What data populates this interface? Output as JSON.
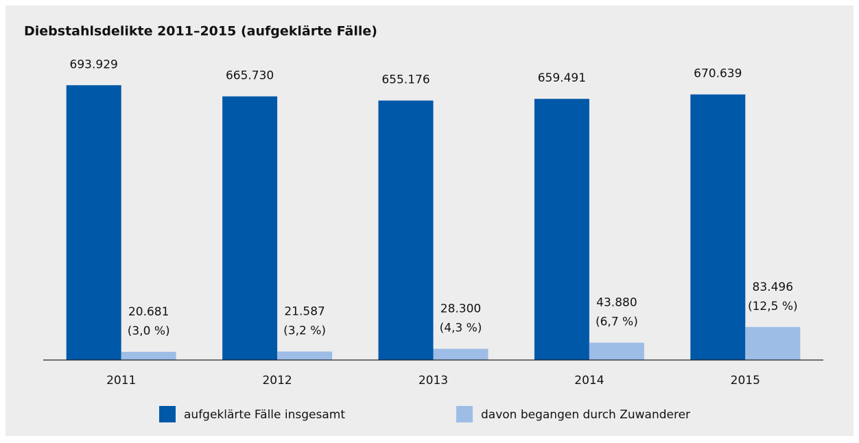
{
  "chart_data": {
    "type": "bar",
    "title": "Diebstahlsdelikte 2011–2015 (aufgeklärte Fälle)",
    "categories": [
      "2011",
      "2012",
      "2013",
      "2014",
      "2015"
    ],
    "series": [
      {
        "name": "aufgeklärte Fälle insgesamt",
        "color": "#0058a8",
        "values": [
          693929,
          665730,
          655176,
          659491,
          670639
        ],
        "value_labels": [
          "693.929",
          "665.730",
          "655.176",
          "659.491",
          "670.639"
        ]
      },
      {
        "name": "davon begangen durch Zuwanderer",
        "color": "#9dbde6",
        "values": [
          20681,
          21587,
          28300,
          43880,
          83496
        ],
        "value_labels": [
          "20.681",
          "21.587",
          "28.300",
          "43.880",
          "83.496"
        ],
        "share_labels": [
          "(3,0 %)",
          "(3,2 %)",
          "(4,3 %)",
          "(6,7 %)",
          "(12,5 %)"
        ]
      }
    ],
    "ylim": [
      0,
      800000
    ]
  }
}
